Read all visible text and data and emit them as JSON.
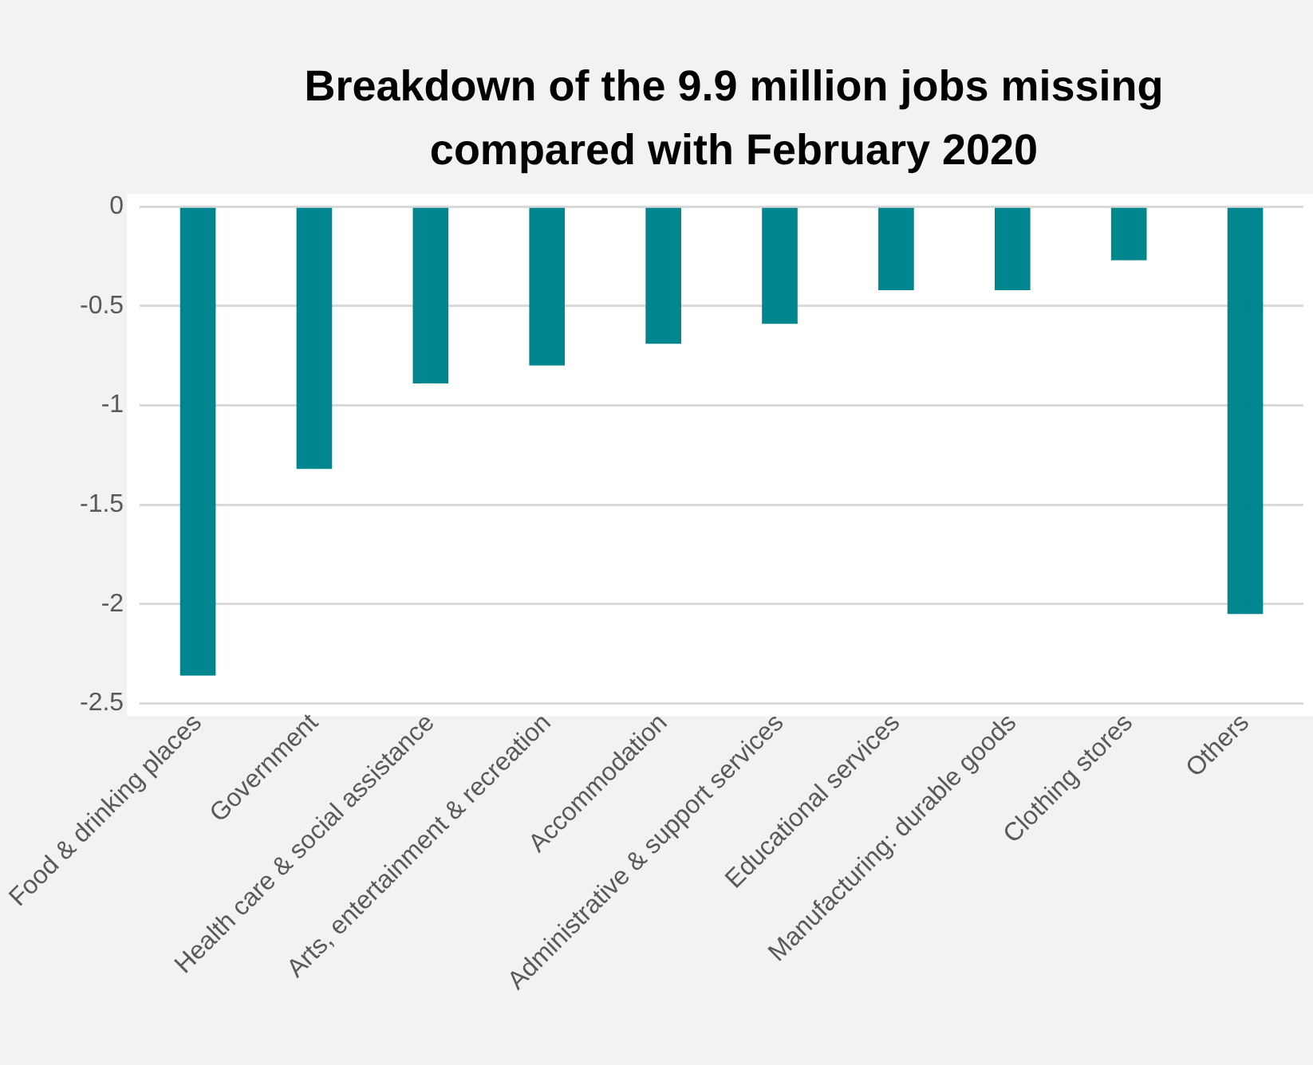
{
  "chart_data": {
    "type": "bar",
    "title": "Breakdown of the 9.9 million jobs missing compared with February 2020",
    "categories": [
      "Food & drinking places",
      "Government",
      "Health care & social assistance",
      "Arts, entertainment & recreation",
      "Accommodation",
      "Administrative & support services",
      "Educational services",
      "Manufacturing: durable goods",
      "Clothing stores",
      "Others"
    ],
    "values": [
      -2.36,
      -1.32,
      -0.89,
      -0.8,
      -0.69,
      -0.59,
      -0.42,
      -0.42,
      -0.27,
      -2.05
    ],
    "color": "#00868f",
    "ylim": [
      -2.5,
      0
    ],
    "yticks": [
      -2.5,
      -2,
      -1.5,
      -1,
      -0.5,
      0
    ],
    "grid": "y"
  }
}
